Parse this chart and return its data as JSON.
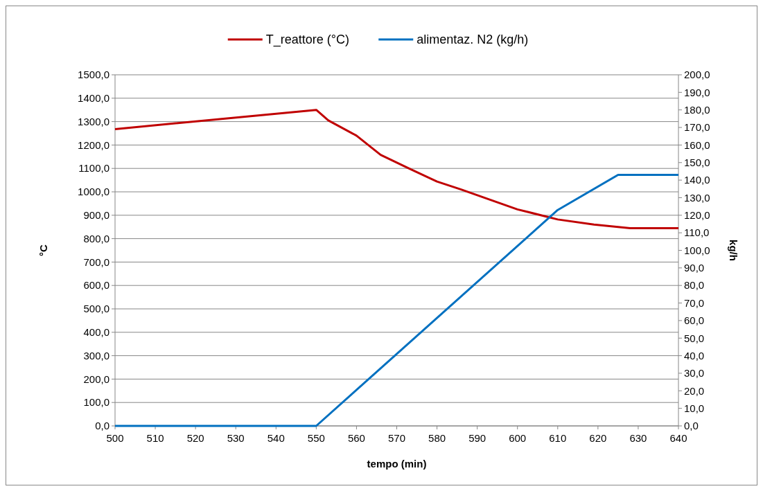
{
  "chart_data": {
    "type": "line",
    "xlabel": "tempo (min)",
    "ylabel": "°C",
    "y2label": "kg/h",
    "legend": "top",
    "grid": "y",
    "line_style": "solid",
    "marker": "none",
    "xlim": [
      500,
      640
    ],
    "xticks": [
      500,
      510,
      520,
      530,
      540,
      550,
      560,
      570,
      580,
      590,
      600,
      610,
      620,
      630,
      640
    ],
    "ylim": [
      0,
      1500
    ],
    "yticks": [
      {
        "value": 0,
        "label": "0,0"
      },
      {
        "value": 100,
        "label": "100,0"
      },
      {
        "value": 200,
        "label": "200,0"
      },
      {
        "value": 300,
        "label": "300,0"
      },
      {
        "value": 400,
        "label": "400,0"
      },
      {
        "value": 500,
        "label": "500,0"
      },
      {
        "value": 600,
        "label": "600,0"
      },
      {
        "value": 700,
        "label": "700,0"
      },
      {
        "value": 800,
        "label": "800,0"
      },
      {
        "value": 900,
        "label": "900,0"
      },
      {
        "value": 1000,
        "label": "1000,0"
      },
      {
        "value": 1100,
        "label": "1100,0"
      },
      {
        "value": 1200,
        "label": "1200,0"
      },
      {
        "value": 1300,
        "label": "1300,0"
      },
      {
        "value": 1400,
        "label": "1400,0"
      },
      {
        "value": 1500,
        "label": "1500,0"
      }
    ],
    "y2lim": [
      0,
      200
    ],
    "y2ticks": [
      {
        "value": 0,
        "label": "0,0"
      },
      {
        "value": 10,
        "label": "10,0"
      },
      {
        "value": 20,
        "label": "20,0"
      },
      {
        "value": 30,
        "label": "30,0"
      },
      {
        "value": 40,
        "label": "40,0"
      },
      {
        "value": 50,
        "label": "50,0"
      },
      {
        "value": 60,
        "label": "60,0"
      },
      {
        "value": 70,
        "label": "70,0"
      },
      {
        "value": 80,
        "label": "80,0"
      },
      {
        "value": 90,
        "label": "90,0"
      },
      {
        "value": 100,
        "label": "100,0"
      },
      {
        "value": 110,
        "label": "110,0"
      },
      {
        "value": 120,
        "label": "120,0"
      },
      {
        "value": 130,
        "label": "130,0"
      },
      {
        "value": 140,
        "label": "140,0"
      },
      {
        "value": 150,
        "label": "150,0"
      },
      {
        "value": 160,
        "label": "160,0"
      },
      {
        "value": 170,
        "label": "170,0"
      },
      {
        "value": 180,
        "label": "180,0"
      },
      {
        "value": 190,
        "label": "190,0"
      },
      {
        "value": 200,
        "label": "200,0"
      }
    ],
    "series": [
      {
        "name": "T_reattore (°C)",
        "color": "#c00000",
        "x": [
          500,
          550,
          553,
          560,
          566,
          573,
          580,
          586,
          595,
          600,
          607,
          610,
          619,
          628,
          640
        ],
        "values": [
          1268,
          1350,
          1305,
          1240,
          1158,
          1100,
          1044,
          1010,
          955,
          925,
          895,
          882,
          860,
          845,
          845
        ]
      },
      {
        "name": "alimentaz. N2 (kg/h)",
        "color": "#0070c0",
        "axis": "y2",
        "x": [
          500,
          550,
          610,
          625,
          640
        ],
        "values": [
          0,
          0,
          123,
          143,
          143
        ]
      }
    ]
  }
}
